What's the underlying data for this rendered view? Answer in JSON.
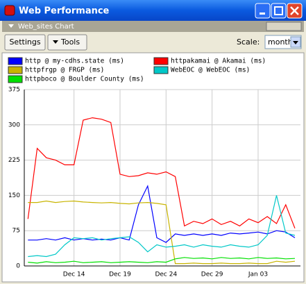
{
  "ui": {
    "window_title": "Web Performance",
    "panel_title": "Web_sites Chart",
    "buttons": [
      "Settings",
      "Tools"
    ],
    "scale_label": "Scale:",
    "scale_value": "month"
  },
  "chart_data": {
    "type": "line",
    "x": [
      9,
      10,
      11,
      12,
      13,
      14,
      15,
      16,
      17,
      18,
      19,
      20,
      21,
      22,
      23,
      24,
      25,
      26,
      27,
      28,
      29,
      30,
      31,
      32,
      33,
      34,
      35,
      36,
      37,
      38
    ],
    "xlim": [
      8.6,
      38.6
    ],
    "xticks": [
      {
        "value": 14,
        "label": "Dec 14"
      },
      {
        "value": 19,
        "label": "Dec 19"
      },
      {
        "value": 24,
        "label": "Dec 24"
      },
      {
        "value": 29,
        "label": "Dec 29"
      },
      {
        "value": 34,
        "label": "Jan 03"
      }
    ],
    "ylim": [
      0,
      375
    ],
    "yticks": [
      0,
      75,
      150,
      225,
      300,
      375
    ],
    "grid": true,
    "series": [
      {
        "name": "http @ my-cdhs.state (ms)",
        "color": "#0000ff",
        "values": [
          55,
          55,
          58,
          55,
          60,
          55,
          58,
          55,
          57,
          55,
          60,
          55,
          130,
          170,
          60,
          50,
          68,
          65,
          68,
          65,
          68,
          65,
          70,
          68,
          70,
          72,
          68,
          75,
          72,
          60
        ]
      },
      {
        "name": "httpakamai @ Akamai (ms)",
        "color": "#ff0000",
        "values": [
          100,
          250,
          230,
          225,
          215,
          215,
          310,
          315,
          312,
          305,
          195,
          190,
          192,
          198,
          195,
          200,
          190,
          85,
          95,
          90,
          100,
          88,
          95,
          85,
          100,
          92,
          105,
          90,
          130,
          80
        ]
      },
      {
        "name": "httpfrgp @ FRGP (ms)",
        "color": "#c8b400",
        "values": [
          135,
          135,
          138,
          135,
          137,
          138,
          136,
          135,
          134,
          135,
          133,
          132,
          134,
          135,
          133,
          130,
          5,
          5,
          6,
          5,
          5,
          6,
          5,
          5,
          6,
          5,
          5,
          10,
          8,
          10
        ]
      },
      {
        "name": "WebEOC @ WebEOC (ms)",
        "color": "#00c8c8",
        "values": [
          20,
          22,
          20,
          25,
          45,
          60,
          58,
          60,
          55,
          58,
          60,
          62,
          50,
          30,
          45,
          40,
          42,
          45,
          40,
          45,
          42,
          40,
          45,
          42,
          40,
          45,
          65,
          150,
          70,
          65
        ]
      },
      {
        "name": "httpboco @ Boulder County (ms)",
        "color": "#00e000",
        "values": [
          8,
          6,
          9,
          7,
          8,
          10,
          7,
          8,
          9,
          7,
          8,
          9,
          8,
          7,
          9,
          8,
          15,
          18,
          16,
          17,
          15,
          18,
          16,
          17,
          15,
          18,
          16,
          17,
          15,
          16
        ]
      }
    ]
  }
}
